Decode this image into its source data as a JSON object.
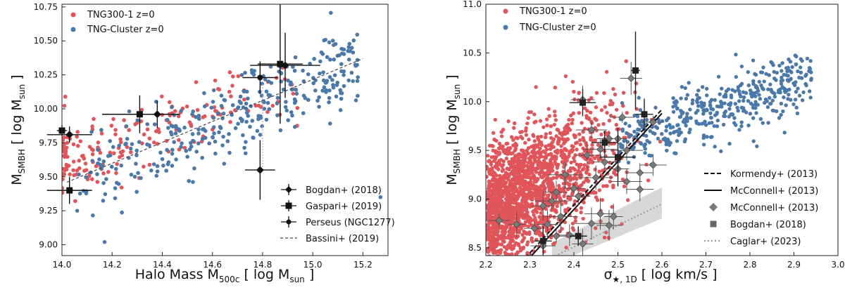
{
  "colors": {
    "tng300": "#e05559",
    "tng_cluster": "#4a78a8",
    "obs": "#111111",
    "mcconnell_pts": "#7a7a7a",
    "caglar": "#999999",
    "caglar_band": "#d8d8d8"
  },
  "chart_data": [
    {
      "type": "scatter",
      "xlabel_main": "Halo Mass M",
      "xlabel_sub": "500c",
      "xlabel_unit": " [ log M",
      "xlabel_unit_sub": "sun",
      "xlabel_end": " ]",
      "ylabel_main": "M",
      "ylabel_sub": "SMBH",
      "ylabel_unit": " [ log M",
      "ylabel_unit_sub": "sun",
      "ylabel_end": " ]",
      "xlim": [
        14.0,
        15.3
      ],
      "ylim": [
        8.92,
        10.77
      ],
      "xticks": [
        14.0,
        14.2,
        14.4,
        14.6,
        14.8,
        15.0,
        15.2
      ],
      "xtick_labels": [
        "14.0",
        "14.2",
        "14.4",
        "14.6",
        "14.8",
        "15.0",
        "15.2"
      ],
      "yticks": [
        9.0,
        9.25,
        9.5,
        9.75,
        10.0,
        10.25,
        10.5,
        10.75
      ],
      "ytick_labels": [
        "9.00",
        "9.25",
        "9.50",
        "9.75",
        "10.00",
        "10.25",
        "10.50",
        "10.75"
      ],
      "legend_top": [
        "TNG300-1 z=0",
        "TNG-Cluster z=0"
      ],
      "legend_bottom": [
        "Bogdan+ (2018)",
        "Gaspari+ (2019)",
        "Perseus (NGC1277)",
        "Bassini+ (2019)"
      ],
      "fit_line": {
        "name": "Bassini+ (2019)",
        "x": [
          14.02,
          15.2
        ],
        "y": [
          9.46,
          10.37
        ]
      },
      "obs_points": [
        {
          "x": 14.0,
          "y": 9.84,
          "xerr": 0.02,
          "yerr": 0.04,
          "marker": "square"
        },
        {
          "x": 14.03,
          "y": 9.81,
          "xerr": 0.09,
          "yerr": 0.06,
          "marker": "diamond"
        },
        {
          "x": 14.03,
          "y": 9.4,
          "xerr": 0.09,
          "yerr": 0.1,
          "marker": "square"
        },
        {
          "x": 14.31,
          "y": 9.96,
          "xerr": 0.15,
          "yerr": 0.14,
          "marker": "square"
        },
        {
          "x": 14.38,
          "y": 9.96,
          "xerr": 0.09,
          "yerr": 0.1,
          "marker": "diamond"
        },
        {
          "x": 14.79,
          "y": 10.23,
          "xerr": 0.07,
          "yerr": 0.12,
          "marker": "circle"
        },
        {
          "x": 14.87,
          "y": 10.33,
          "xerr": 0.09,
          "yerr": 0.44,
          "marker": "square"
        },
        {
          "x": 14.89,
          "y": 10.32,
          "xerr": 0.14,
          "yerr": 0.24,
          "marker": "diamond"
        },
        {
          "x": 14.79,
          "y": 9.55,
          "xerr": 0.06,
          "yerr": 0.22,
          "marker": "diamond"
        }
      ],
      "perseus_dotted": {
        "x": 14.8,
        "y": [
          9.55,
          10.18
        ]
      },
      "seed": 11
    },
    {
      "type": "scatter",
      "xlabel_main": "σ",
      "xlabel_sub": "★, 1D",
      "xlabel_unit": " [ log km/s ]",
      "ylabel_main": "M",
      "ylabel_sub": "SMBH",
      "ylabel_unit": " [ log M",
      "ylabel_unit_sub": "sun",
      "ylabel_end": " ]",
      "xlim": [
        2.2,
        3.0
      ],
      "ylim": [
        8.42,
        11.0
      ],
      "xticks": [
        2.2,
        2.3,
        2.4,
        2.5,
        2.6,
        2.7,
        2.8,
        2.9,
        3.0
      ],
      "xtick_labels": [
        "2.2",
        "2.3",
        "2.4",
        "2.5",
        "2.6",
        "2.7",
        "2.8",
        "2.9",
        "3.0"
      ],
      "yticks": [
        8.5,
        9.0,
        9.5,
        10.0,
        10.5,
        11.0
      ],
      "ytick_labels": [
        "8.5",
        "9.0",
        "9.5",
        "10.0",
        "10.5",
        "11.0"
      ],
      "legend_top": [
        "TNG300-1 z=0",
        "TNG-Cluster z=0"
      ],
      "legend_bottom": [
        "Kormendy+ (2013)",
        "McConnell+ (2013)",
        "McConnell+ (2013)",
        "Bogdan+ (2018)",
        "Caglar+ (2023)"
      ],
      "kormendy_line": {
        "x": [
          2.28,
          2.6
        ],
        "y": [
          8.35,
          9.92
        ]
      },
      "mcconnell_line": {
        "x": [
          2.3,
          2.6
        ],
        "y": [
          8.4,
          9.88
        ]
      },
      "caglar_line": {
        "x": [
          2.35,
          2.6
        ],
        "y": [
          8.4,
          8.95
        ]
      },
      "caglar_band": {
        "x": [
          2.35,
          2.6
        ],
        "y_lo": [
          8.33,
          8.8
        ],
        "y_hi": [
          8.55,
          9.12
        ]
      },
      "obs_points": [
        {
          "x": 2.54,
          "y": 10.32,
          "xerr": 0.01,
          "yerr": 0.4,
          "marker": "square"
        },
        {
          "x": 2.42,
          "y": 9.99,
          "xerr": 0.03,
          "yerr": 0.14,
          "marker": "square"
        },
        {
          "x": 2.47,
          "y": 9.58,
          "xerr": 0.03,
          "yerr": 0.12,
          "marker": "square"
        },
        {
          "x": 2.5,
          "y": 9.43,
          "xerr": 0.04,
          "yerr": 0.3,
          "marker": "square"
        },
        {
          "x": 2.56,
          "y": 9.87,
          "xerr": 0.02,
          "yerr": 0.16,
          "marker": "square"
        },
        {
          "x": 2.41,
          "y": 8.62,
          "xerr": 0.02,
          "yerr": 0.1,
          "marker": "square"
        },
        {
          "x": 2.33,
          "y": 8.57,
          "xerr": 0.02,
          "yerr": 0.15,
          "marker": "square"
        }
      ],
      "mcconnell_points": [
        [
          2.53,
          10.24
        ],
        [
          2.42,
          10.02
        ],
        [
          2.51,
          9.84
        ],
        [
          2.58,
          9.79
        ],
        [
          2.44,
          9.71
        ],
        [
          2.48,
          9.62
        ],
        [
          2.46,
          9.51
        ],
        [
          2.52,
          9.5
        ],
        [
          2.43,
          9.45
        ],
        [
          2.47,
          9.38
        ],
        [
          2.5,
          9.31
        ],
        [
          2.55,
          9.27
        ],
        [
          2.58,
          9.35
        ],
        [
          2.45,
          9.22
        ],
        [
          2.52,
          9.18
        ],
        [
          2.38,
          9.25
        ],
        [
          2.36,
          9.07
        ],
        [
          2.35,
          8.98
        ],
        [
          2.33,
          8.93
        ],
        [
          2.37,
          8.82
        ],
        [
          2.34,
          8.74
        ],
        [
          2.39,
          8.63
        ],
        [
          2.31,
          8.7
        ],
        [
          2.27,
          8.74
        ],
        [
          2.23,
          8.78
        ],
        [
          2.44,
          8.75
        ],
        [
          2.48,
          8.73
        ],
        [
          2.46,
          8.85
        ],
        [
          2.41,
          9.03
        ],
        [
          2.42,
          8.54
        ],
        [
          2.55,
          9.1
        ],
        [
          2.36,
          8.62
        ],
        [
          2.4,
          9.11
        ],
        [
          2.49,
          8.82
        ],
        [
          2.33,
          8.52
        ],
        [
          2.5,
          9.62
        ]
      ],
      "seed": 23
    }
  ]
}
